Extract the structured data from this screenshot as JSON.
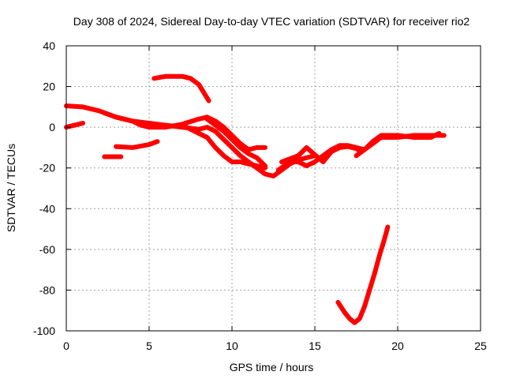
{
  "chart_data": {
    "type": "line",
    "title": "Day 308 of 2024, Sidereal Day-to-day VTEC variation (SDTVAR) for receiver rio2",
    "xlabel": "GPS time / hours",
    "ylabel": "SDTVAR / TECUs",
    "xlim": [
      0,
      25
    ],
    "ylim": [
      -100,
      40
    ],
    "xticks": [
      0,
      5,
      10,
      15,
      20,
      25
    ],
    "yticks": [
      -100,
      -80,
      -60,
      -40,
      -20,
      0,
      20,
      40
    ],
    "grid": true,
    "color": "#ff0000",
    "series": [
      {
        "name": "track-1",
        "points": [
          [
            0.0,
            10.5
          ],
          [
            1.0,
            10.0
          ],
          [
            2.0,
            8.0
          ],
          [
            3.0,
            5.0
          ],
          [
            4.0,
            3.0
          ],
          [
            4.5,
            2.5
          ],
          [
            5.0,
            2.0
          ],
          [
            6.0,
            1.0
          ],
          [
            7.0,
            0.0
          ],
          [
            8.0,
            -1.0
          ],
          [
            8.5,
            0.0
          ],
          [
            9.0,
            -2.0
          ],
          [
            9.5,
            -6.0
          ],
          [
            10.0,
            -10.0
          ],
          [
            10.5,
            -14.0
          ],
          [
            11.0,
            -17.0
          ],
          [
            11.5,
            -20.0
          ],
          [
            12.0,
            -23.0
          ],
          [
            12.5,
            -24.0
          ],
          [
            13.0,
            -21.0
          ],
          [
            13.5,
            -18.0
          ],
          [
            14.0,
            -16.0
          ],
          [
            15.0,
            -14.0
          ]
        ]
      },
      {
        "name": "track-2",
        "points": [
          [
            0.0,
            0.0
          ],
          [
            0.5,
            1.0
          ],
          [
            1.0,
            2.0
          ]
        ]
      },
      {
        "name": "track-3",
        "points": [
          [
            2.3,
            -14.5
          ],
          [
            3.3,
            -14.5
          ]
        ]
      },
      {
        "name": "track-4",
        "points": [
          [
            3.0,
            -9.5
          ],
          [
            4.0,
            -10.0
          ],
          [
            5.0,
            -8.5
          ],
          [
            5.5,
            -7.0
          ]
        ]
      },
      {
        "name": "track-5",
        "points": [
          [
            5.3,
            24.0
          ],
          [
            6.0,
            25.0
          ],
          [
            7.0,
            25.0
          ],
          [
            7.5,
            24.0
          ],
          [
            8.0,
            21.0
          ],
          [
            8.3,
            17.0
          ],
          [
            8.6,
            13.0
          ]
        ]
      },
      {
        "name": "track-6",
        "points": [
          [
            2.3,
            7.0
          ],
          [
            3.0,
            5.0
          ],
          [
            4.0,
            3.0
          ],
          [
            4.5,
            1.0
          ],
          [
            5.0,
            0.0
          ],
          [
            6.0,
            0.0
          ],
          [
            7.0,
            1.5
          ],
          [
            8.0,
            4.0
          ],
          [
            8.5,
            5.0
          ],
          [
            9.0,
            3.0
          ],
          [
            9.5,
            0.0
          ],
          [
            10.0,
            -4.0
          ],
          [
            10.5,
            -8.0
          ],
          [
            11.0,
            -11.0
          ],
          [
            11.5,
            -10.0
          ],
          [
            12.0,
            -10.0
          ]
        ]
      },
      {
        "name": "track-7",
        "points": [
          [
            7.0,
            1.0
          ],
          [
            7.5,
            -1.0
          ],
          [
            8.0,
            -3.0
          ],
          [
            8.5,
            -5.0
          ],
          [
            9.0,
            -10.0
          ],
          [
            9.5,
            -14.0
          ],
          [
            10.0,
            -17.0
          ],
          [
            10.5,
            -17.0
          ],
          [
            11.0,
            -18.0
          ],
          [
            11.5,
            -19.0
          ],
          [
            12.0,
            -20.0
          ]
        ]
      },
      {
        "name": "track-8",
        "points": [
          [
            8.5,
            4.0
          ],
          [
            9.0,
            1.0
          ],
          [
            9.5,
            -2.0
          ],
          [
            10.0,
            -6.0
          ],
          [
            10.5,
            -10.0
          ],
          [
            11.0,
            -13.0
          ],
          [
            11.5,
            -15.0
          ],
          [
            12.0,
            -19.0
          ]
        ]
      },
      {
        "name": "track-9",
        "points": [
          [
            12.8,
            -21.0
          ],
          [
            13.5,
            -17.0
          ],
          [
            14.0,
            -17.0
          ],
          [
            14.5,
            -19.0
          ],
          [
            15.0,
            -17.0
          ],
          [
            15.5,
            -14.0
          ],
          [
            16.0,
            -11.0
          ],
          [
            16.5,
            -9.0
          ],
          [
            17.0,
            -9.0
          ],
          [
            17.5,
            -10.0
          ],
          [
            18.0,
            -11.0
          ],
          [
            18.5,
            -8.0
          ],
          [
            19.0,
            -5.0
          ],
          [
            20.0,
            -5.0
          ],
          [
            21.0,
            -4.0
          ],
          [
            22.0,
            -4.0
          ],
          [
            22.8,
            -4.0
          ]
        ]
      },
      {
        "name": "track-10",
        "points": [
          [
            13.0,
            -17.0
          ],
          [
            14.0,
            -14.0
          ],
          [
            14.5,
            -10.0
          ],
          [
            15.5,
            -17.0
          ],
          [
            16.0,
            -12.0
          ],
          [
            16.5,
            -10.0
          ],
          [
            17.0,
            -9.5
          ],
          [
            17.5,
            -10.5
          ],
          [
            17.8,
            -12.0
          ]
        ]
      },
      {
        "name": "track-11",
        "points": [
          [
            17.5,
            -14.0
          ],
          [
            18.0,
            -11.0
          ],
          [
            18.5,
            -7.0
          ],
          [
            19.0,
            -4.0
          ],
          [
            20.0,
            -4.0
          ],
          [
            21.0,
            -5.0
          ],
          [
            22.0,
            -5.0
          ],
          [
            22.5,
            -3.0
          ]
        ]
      },
      {
        "name": "track-12",
        "points": [
          [
            16.4,
            -86.0
          ],
          [
            16.8,
            -91.0
          ],
          [
            17.1,
            -94.0
          ],
          [
            17.4,
            -96.0
          ],
          [
            17.7,
            -94.0
          ],
          [
            18.0,
            -88.0
          ],
          [
            18.3,
            -80.0
          ],
          [
            18.6,
            -72.0
          ],
          [
            18.9,
            -63.0
          ],
          [
            19.2,
            -55.0
          ],
          [
            19.4,
            -49.0
          ]
        ]
      }
    ]
  }
}
